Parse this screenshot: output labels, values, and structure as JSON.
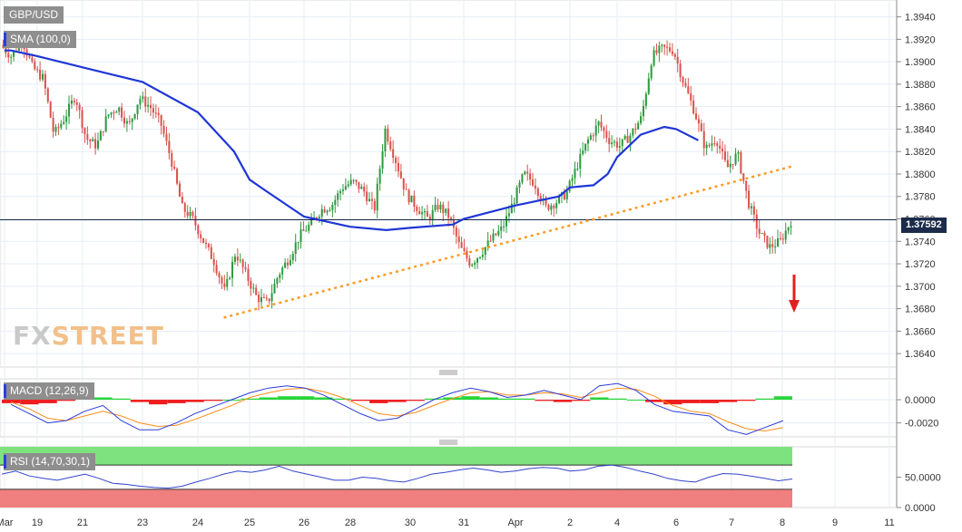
{
  "instrument": "GBP/USD",
  "sma_label": "SMA (100,0)",
  "macd_label": "MACD (12,26,9)",
  "rsi_label": "RSI (14,70,30,1)",
  "current_price": "1.37592",
  "logo": {
    "fx": "FX",
    "street": "STREET"
  },
  "colors": {
    "bull": "#2e9a3e",
    "bear": "#d9534f",
    "sma": "#1f36d6",
    "trend": "#ff9a26",
    "arrow": "#e02020",
    "macd_pos": "#27d63a",
    "macd_neg": "#ef1d1d",
    "macd_line": "#2c3bd8",
    "signal_line": "#ff8c1a",
    "rsi_overbought": "#7ee37e",
    "rsi_oversold": "#f08080",
    "rsi_line": "#3344cc"
  },
  "chart_data": [
    {
      "type": "candlestick",
      "title": "GBP/USD",
      "price_axis_ticks": [
        "1.3940",
        "1.3920",
        "1.3900",
        "1.3880",
        "1.3860",
        "1.3840",
        "1.3820",
        "1.3800",
        "1.3780",
        "1.3760",
        "1.3740",
        "1.3720",
        "1.3700",
        "1.3680",
        "1.3660",
        "1.3640"
      ],
      "ylim": [
        1.3628,
        1.3955
      ],
      "x_ticks": [
        "Mar",
        "19",
        "21",
        "23",
        "24",
        "25",
        "26",
        "28",
        "30",
        "31",
        "Apr",
        "2",
        "4",
        "6",
        "7",
        "8",
        "9",
        "11"
      ],
      "series": [
        {
          "name": "SMA (100,0)",
          "type": "line",
          "x": [
            0,
            0.2,
            1,
            2,
            3,
            4,
            4.7,
            5,
            5.3,
            6,
            7,
            7.6,
            8,
            8.8,
            9,
            10,
            10.3,
            10.8,
            11,
            11.5,
            11.8,
            12,
            12.4,
            12.8,
            13,
            13.4
          ],
          "values": [
            1.391,
            1.391,
            1.3905,
            1.3895,
            1.3882,
            1.3855,
            1.382,
            1.3795,
            1.3785,
            1.3762,
            1.3753,
            1.375,
            1.3752,
            1.3755,
            1.376,
            1.3772,
            1.3775,
            1.378,
            1.3788,
            1.379,
            1.38,
            1.3815,
            1.3835,
            1.3842,
            1.384,
            1.383
          ]
        },
        {
          "name": "",
          "type": "line",
          "style": "dotted",
          "x": [
            4.5,
            15.2
          ],
          "values": [
            1.3672,
            1.3807
          ]
        }
      ],
      "current_price": 1.37592,
      "ohlc_path": [
        1.3915,
        1.3905,
        1.392,
        1.3895,
        1.3885,
        1.3835,
        1.385,
        1.387,
        1.3832,
        1.3825,
        1.3852,
        1.386,
        1.3842,
        1.3868,
        1.386,
        1.3845,
        1.3812,
        1.377,
        1.376,
        1.374,
        1.3722,
        1.3695,
        1.373,
        1.371,
        1.369,
        1.3685,
        1.371,
        1.3725,
        1.3745,
        1.3755,
        1.3768,
        1.3772,
        1.3788,
        1.3793,
        1.3785,
        1.3768,
        1.384,
        1.3812,
        1.3782,
        1.377,
        1.376,
        1.3772,
        1.3762,
        1.3735,
        1.372,
        1.373,
        1.3742,
        1.3752,
        1.3775,
        1.38,
        1.3792,
        1.377,
        1.3775,
        1.3783,
        1.3808,
        1.383,
        1.3845,
        1.383,
        1.3825,
        1.3835,
        1.385,
        1.3905,
        1.3912,
        1.391,
        1.388,
        1.3855,
        1.3822,
        1.3832,
        1.3805,
        1.3818,
        1.3775,
        1.3748,
        1.3735,
        1.374,
        1.3758
      ]
    },
    {
      "type": "bar+line",
      "title": "MACD (12,26,9)",
      "y_ticks": [
        "0.0000",
        "-0.0020"
      ],
      "ylim": [
        -0.0032,
        0.0018
      ],
      "histogram": [
        -0.0003,
        -0.0004,
        -0.0003,
        -0.0001,
        0.0001,
        0.0002,
        0.0001,
        -0.0002,
        -0.0004,
        -0.0003,
        -0.0002,
        -0.0001,
        0.0,
        0.0001,
        0.0002,
        0.0003,
        0.0003,
        0.0002,
        0.0001,
        -0.0001,
        -0.0003,
        -0.0002,
        -0.0001,
        0.0001,
        0.0002,
        0.0003,
        0.0002,
        0.0001,
        0.0001,
        -0.0001,
        -0.0002,
        -0.0001,
        0.0002,
        0.0001,
        0.0,
        -0.0002,
        -0.0004,
        -0.0003,
        -0.0003,
        -0.0002,
        -0.0001,
        0.0001,
        0.0003
      ],
      "macd_line": [
        -0.0004,
        -0.0012,
        -0.002,
        -0.0018,
        -0.001,
        -0.0005,
        -0.0018,
        -0.0026,
        -0.0026,
        -0.002,
        -0.0012,
        -0.0006,
        0.0,
        0.0006,
        0.001,
        0.0012,
        0.001,
        0.0004,
        -0.0004,
        -0.0012,
        -0.0018,
        -0.0016,
        -0.0008,
        0.0,
        0.0006,
        0.001,
        0.0007,
        0.0002,
        0.0004,
        0.0008,
        0.0004,
        0.0,
        0.0012,
        0.0014,
        0.0008,
        -0.0004,
        -0.001,
        -0.0012,
        -0.0014,
        -0.0026,
        -0.003,
        -0.0024,
        -0.0018
      ],
      "signal_line": [
        -0.0002,
        -0.0008,
        -0.0016,
        -0.0018,
        -0.0014,
        -0.001,
        -0.0014,
        -0.002,
        -0.0023,
        -0.0022,
        -0.0017,
        -0.0011,
        -0.0005,
        0.0002,
        0.0006,
        0.0009,
        0.001,
        0.0007,
        0.0002,
        -0.0005,
        -0.0012,
        -0.0014,
        -0.0011,
        -0.0005,
        0.0001,
        0.0006,
        0.0007,
        0.0004,
        0.0004,
        0.0006,
        0.0005,
        0.0002,
        0.0006,
        0.001,
        0.0009,
        0.0003,
        -0.0005,
        -0.001,
        -0.0012,
        -0.0019,
        -0.0025,
        -0.0027,
        -0.0024
      ]
    },
    {
      "type": "line",
      "title": "RSI (14,70,30,1)",
      "y_ticks": [
        "50.0000",
        "0.0000"
      ],
      "ylim": [
        0,
        100
      ],
      "overbought": 70,
      "oversold": 30,
      "values": [
        55,
        60,
        52,
        48,
        45,
        50,
        55,
        48,
        40,
        38,
        35,
        33,
        32,
        35,
        42,
        48,
        55,
        60,
        58,
        62,
        68,
        60,
        55,
        50,
        45,
        45,
        50,
        48,
        44,
        42,
        48,
        55,
        58,
        62,
        65,
        62,
        58,
        60,
        64,
        66,
        65,
        60,
        62,
        68,
        70,
        66,
        60,
        55,
        48,
        44,
        42,
        50,
        56,
        55,
        52,
        48,
        44,
        47
      ]
    }
  ]
}
